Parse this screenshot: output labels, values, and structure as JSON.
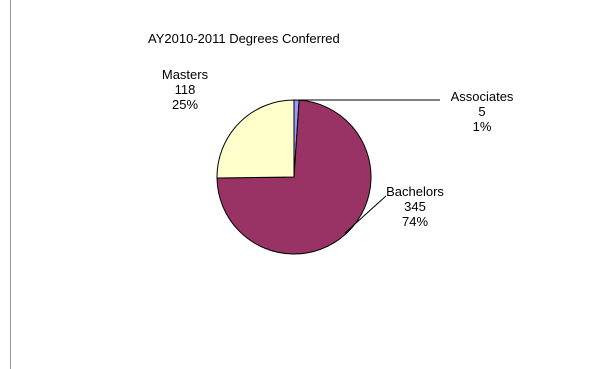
{
  "chart_data": {
    "type": "pie",
    "title": "AY2010-2011 Degrees Conferred",
    "categories": [
      "Associates",
      "Bachelors",
      "Masters"
    ],
    "values": [
      5,
      345,
      118
    ],
    "percents": [
      "1%",
      "74%",
      "25%"
    ],
    "colors": [
      "#9999ff",
      "#993366",
      "#ffffcc"
    ],
    "legend": "none",
    "grid": false
  }
}
